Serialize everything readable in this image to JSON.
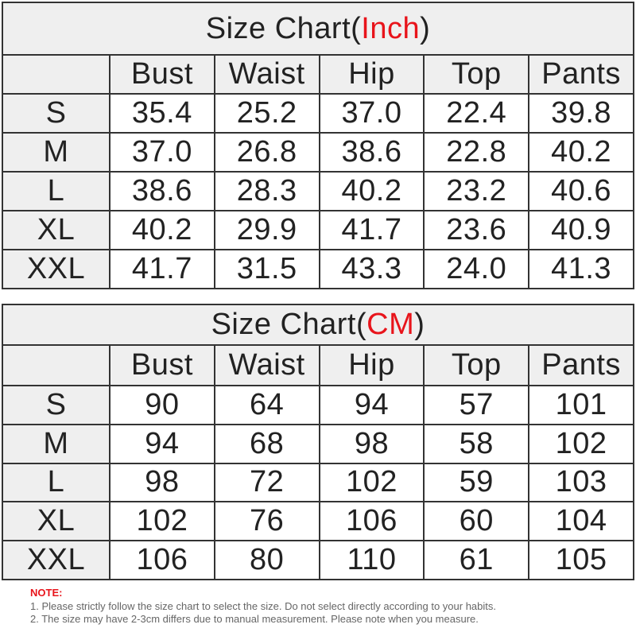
{
  "tables": [
    {
      "title_prefix": "Size Chart(",
      "unit": "Inch",
      "title_suffix": ")",
      "columns": [
        "Bust",
        "Waist",
        "Hip",
        "Top",
        "Pants"
      ],
      "rows": [
        [
          "S",
          "35.4",
          "25.2",
          "37.0",
          "22.4",
          "39.8"
        ],
        [
          "M",
          "37.0",
          "26.8",
          "38.6",
          "22.8",
          "40.2"
        ],
        [
          "L",
          "38.6",
          "28.3",
          "40.2",
          "23.2",
          "40.6"
        ],
        [
          "XL",
          "40.2",
          "29.9",
          "41.7",
          "23.6",
          "40.9"
        ],
        [
          "XXL",
          "41.7",
          "31.5",
          "43.3",
          "24.0",
          "41.3"
        ]
      ]
    },
    {
      "title_prefix": "Size Chart(",
      "unit": "CM",
      "title_suffix": ")",
      "columns": [
        "Bust",
        "Waist",
        "Hip",
        "Top",
        "Pants"
      ],
      "rows": [
        [
          "S",
          "90",
          "64",
          "94",
          "57",
          "101"
        ],
        [
          "M",
          "94",
          "68",
          "98",
          "58",
          "102"
        ],
        [
          "L",
          "98",
          "72",
          "102",
          "59",
          "103"
        ],
        [
          "XL",
          "102",
          "76",
          "106",
          "60",
          "104"
        ],
        [
          "XXL",
          "106",
          "80",
          "110",
          "61",
          "105"
        ]
      ]
    }
  ],
  "note": {
    "heading": "NOTE:",
    "lines": [
      "1. Please strictly follow the size chart  to select the size. Do not select directly according to your habits.",
      "2. The size may have 2-3cm differs due to manual measurement. Please note when you measure."
    ]
  }
}
